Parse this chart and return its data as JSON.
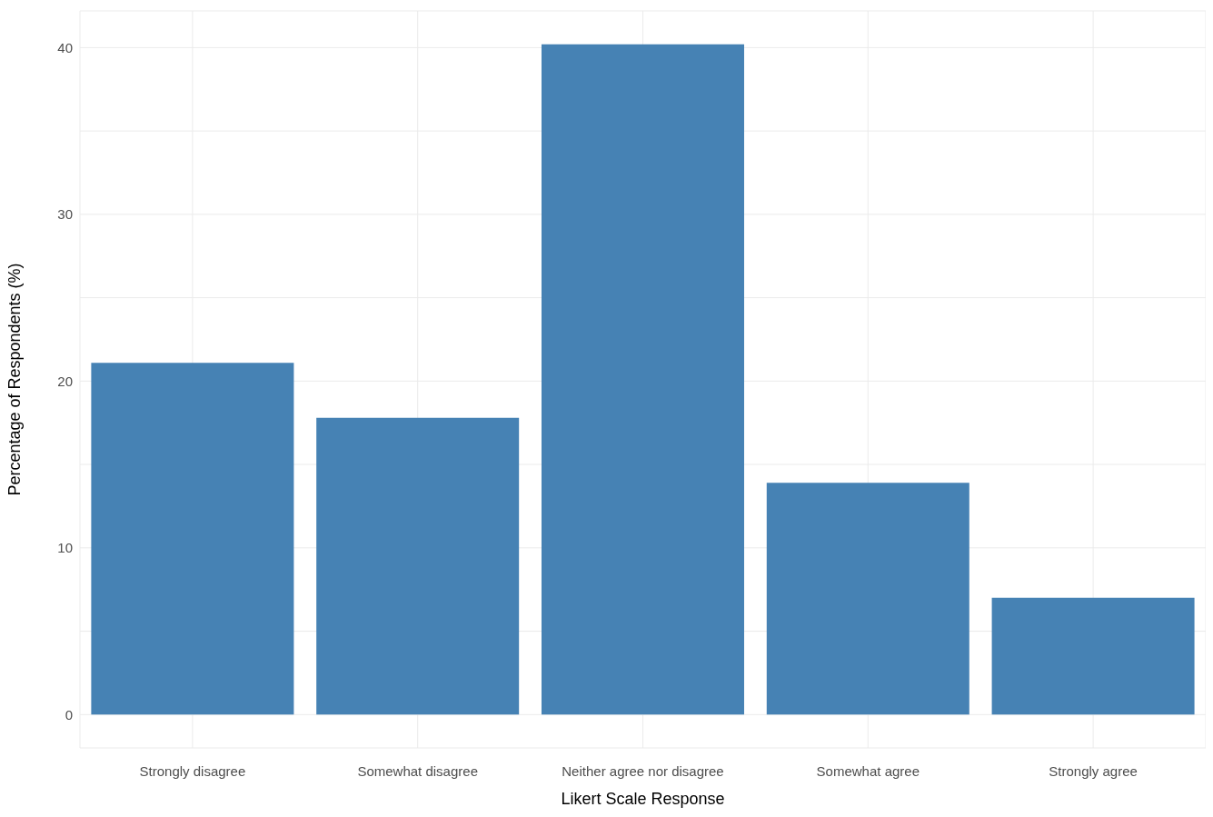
{
  "chart_data": {
    "type": "bar",
    "xlabel": "Likert Scale Response",
    "ylabel": "Percentage of Respondents (%)",
    "categories": [
      "Strongly disagree",
      "Somewhat disagree",
      "Neither agree nor disagree",
      "Somewhat agree",
      "Strongly agree"
    ],
    "values": [
      21.1,
      17.8,
      40.2,
      13.9,
      7.0
    ],
    "color": "#4682b4",
    "ylim": [
      -2,
      42.2
    ],
    "yticks": [
      0,
      {
        "value": 5,
        "label": null
      },
      10,
      {
        "value": 15,
        "label": null
      },
      20,
      {
        "value": 25,
        "label": null
      },
      30,
      {
        "value": 35,
        "label": null
      },
      40
    ],
    "grid": true
  }
}
